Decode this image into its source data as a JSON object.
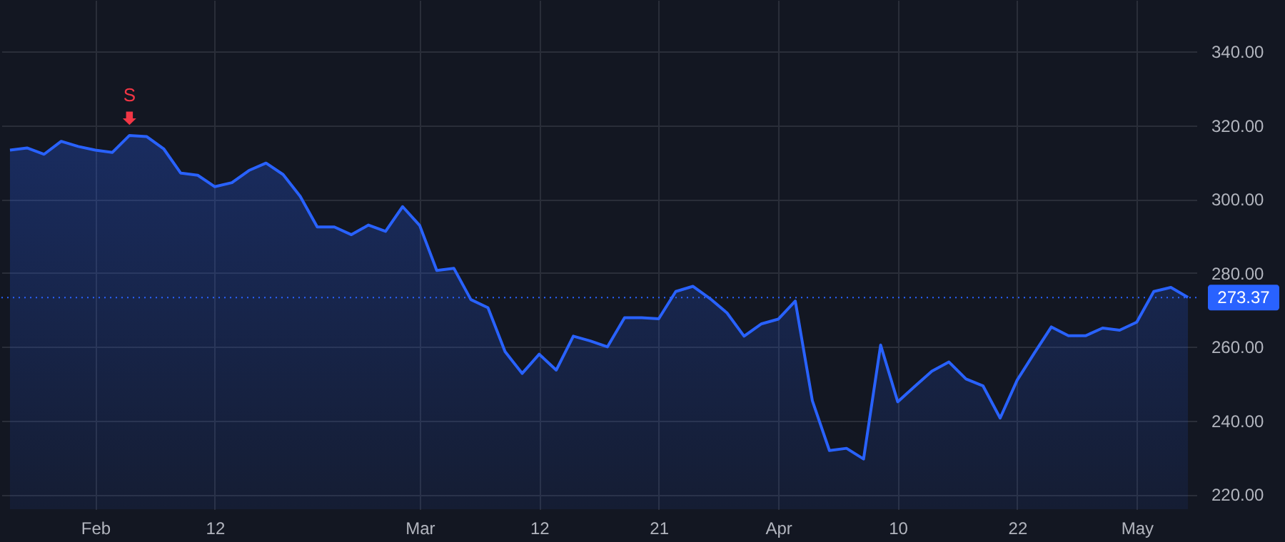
{
  "chart_data": {
    "type": "area",
    "categories": [
      null,
      null,
      null,
      null,
      null,
      "Feb",
      null,
      null,
      null,
      null,
      null,
      null,
      "12",
      null,
      null,
      null,
      null,
      null,
      null,
      null,
      null,
      null,
      null,
      null,
      "Mar",
      null,
      null,
      null,
      null,
      null,
      null,
      "12",
      null,
      null,
      null,
      null,
      null,
      null,
      "21",
      null,
      null,
      null,
      null,
      null,
      null,
      "Apr",
      null,
      null,
      null,
      null,
      null,
      null,
      "10",
      null,
      null,
      null,
      null,
      null,
      null,
      "22",
      null,
      null,
      null,
      null,
      null,
      null,
      "May",
      null,
      null,
      null
    ],
    "series": [
      {
        "color": "#2962ff",
        "values": [
          313.3,
          313.9,
          312.2,
          315.7,
          314.3,
          313.3,
          312.7,
          317.3,
          317.0,
          313.7,
          307.1,
          306.5,
          303.4,
          304.5,
          307.8,
          309.8,
          306.7,
          300.8,
          292.5,
          292.5,
          290.4,
          293.0,
          291.3,
          298.0,
          292.9,
          280.7,
          281.3,
          272.8,
          270.6,
          258.7,
          252.8,
          258.0,
          253.7,
          262.9,
          261.6,
          260.0,
          267.9,
          267.9,
          267.6,
          275.0,
          276.4,
          273.1,
          269.2,
          262.9,
          266.2,
          267.5,
          272.4,
          245.4,
          231.9,
          232.5,
          229.6,
          260.5,
          245.1,
          249.3,
          253.4,
          255.9,
          251.3,
          249.4,
          240.7,
          251.0,
          258.3,
          265.4,
          263.0,
          263.0,
          265.1,
          264.5,
          266.7,
          275.0,
          276.1,
          273.4
        ]
      }
    ],
    "ylim": [
      216,
      354
    ],
    "yticks": [
      {
        "value": 220,
        "label": "220.00"
      },
      {
        "value": 240,
        "label": "240.00"
      },
      {
        "value": 260,
        "label": "260.00"
      },
      {
        "value": 280,
        "label": "280.00"
      },
      {
        "value": 300,
        "label": "300.00"
      },
      {
        "value": 320,
        "label": "320.00"
      },
      {
        "value": 340,
        "label": "340.00"
      }
    ],
    "ref_lines": [
      {
        "axis": "y",
        "value": 273.37,
        "label": "273.37",
        "line_style": "dotted",
        "color": "#2962ff"
      }
    ],
    "annotations": [
      {
        "text": "S",
        "y": 317.3
      }
    ],
    "grid": true
  }
}
